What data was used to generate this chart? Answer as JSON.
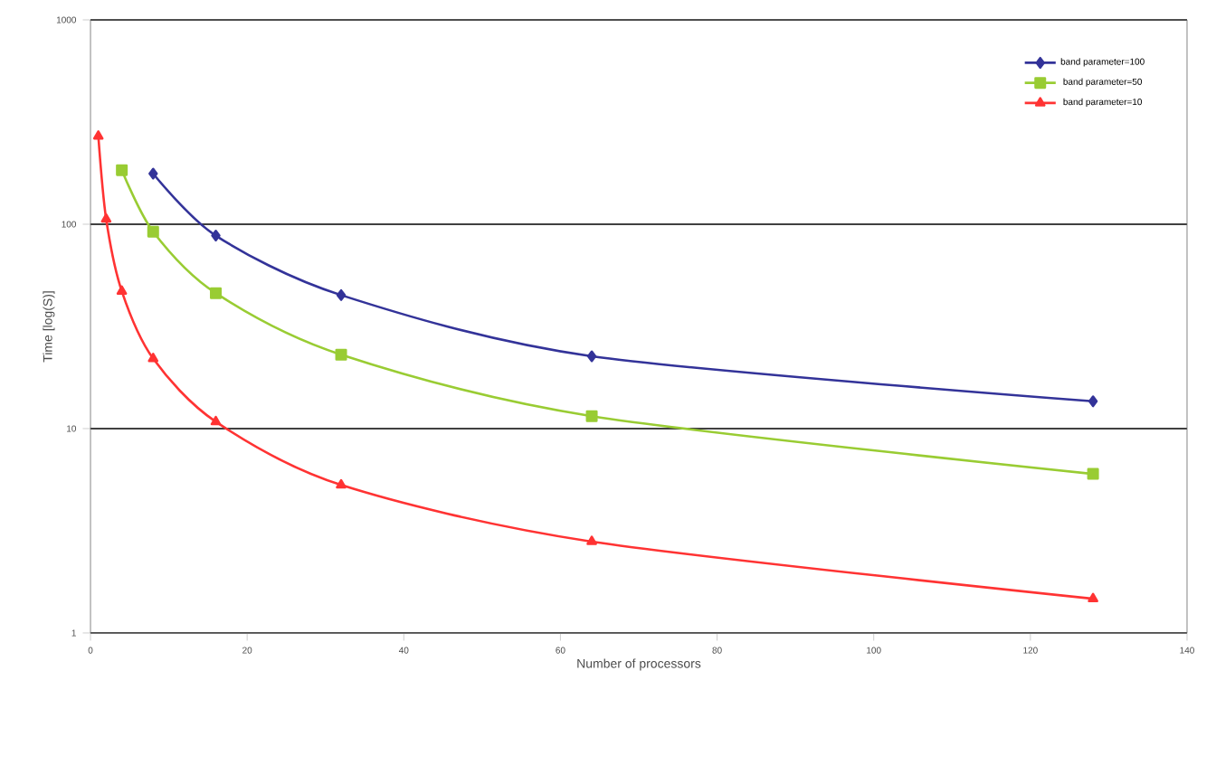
{
  "chart_data": {
    "type": "line",
    "xlabel": "Number of processors",
    "ylabel": "Time [log(S)]",
    "log": "y",
    "xlim": [
      0,
      140
    ],
    "xticks": [
      0,
      20,
      40,
      60,
      80,
      100,
      120,
      140
    ],
    "ylim": [
      1,
      1000
    ],
    "yticks": [
      1,
      10,
      100,
      1000
    ],
    "grid": "y",
    "legend": "top right",
    "series": [
      {
        "name": "band parameter=100",
        "color": "#333399",
        "marker": "diamond",
        "x": [
          8,
          16,
          32,
          64,
          128
        ],
        "values": [
          177,
          88,
          45,
          22.6,
          13.6
        ]
      },
      {
        "name": "band parameter=50",
        "color": "#99cc33",
        "marker": "square",
        "x": [
          4,
          8,
          16,
          32,
          64,
          128
        ],
        "values": [
          184,
          92,
          46,
          23,
          11.5,
          6.0
        ]
      },
      {
        "name": "band parameter=10",
        "color": "#ff3333",
        "marker": "triangle",
        "x": [
          1,
          2,
          4,
          8,
          16,
          32,
          64,
          128
        ],
        "values": [
          270,
          106,
          47,
          22,
          10.8,
          5.3,
          2.8,
          1.47
        ]
      }
    ]
  }
}
